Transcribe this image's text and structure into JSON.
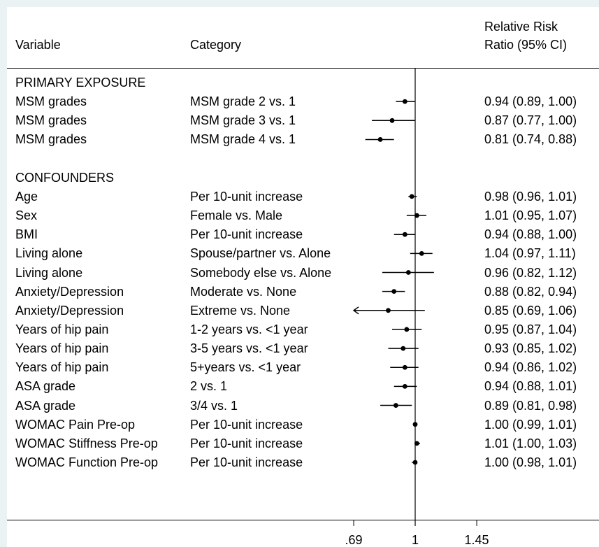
{
  "chart_data": {
    "type": "forest",
    "header": {
      "variable": "Variable",
      "category": "Category",
      "estimate_line1": "Relative Risk",
      "estimate_line2": "Ratio (95% CI)"
    },
    "x_scale": "log",
    "reference_line": 1,
    "xticks": [
      {
        "value": 0.69,
        "label": ".69"
      },
      {
        "value": 1,
        "label": "1"
      },
      {
        "value": 1.45,
        "label": "1.45"
      }
    ],
    "sections": [
      {
        "title": "PRIMARY EXPOSURE",
        "rows": [
          {
            "variable": "MSM grades",
            "category": "MSM grade 2 vs. 1",
            "estimate": 0.94,
            "lower": 0.89,
            "upper": 1.0,
            "label": "0.94 (0.89, 1.00)"
          },
          {
            "variable": "MSM grades",
            "category": "MSM grade 3 vs. 1",
            "estimate": 0.87,
            "lower": 0.77,
            "upper": 1.0,
            "label": "0.87 (0.77, 1.00)"
          },
          {
            "variable": "MSM grades",
            "category": "MSM grade 4 vs. 1",
            "estimate": 0.81,
            "lower": 0.74,
            "upper": 0.88,
            "label": "0.81 (0.74, 0.88)"
          }
        ]
      },
      {
        "title": "CONFOUNDERS",
        "rows": [
          {
            "variable": "Age",
            "category": "Per 10-unit increase",
            "estimate": 0.98,
            "lower": 0.96,
            "upper": 1.01,
            "label": "0.98 (0.96, 1.01)"
          },
          {
            "variable": "Sex",
            "category": "Female vs. Male",
            "estimate": 1.01,
            "lower": 0.95,
            "upper": 1.07,
            "label": "1.01 (0.95, 1.07)"
          },
          {
            "variable": "BMI",
            "category": "Per 10-unit increase",
            "estimate": 0.94,
            "lower": 0.88,
            "upper": 1.0,
            "label": "0.94 (0.88, 1.00)"
          },
          {
            "variable": "Living alone",
            "category": "Spouse/partner vs. Alone",
            "estimate": 1.04,
            "lower": 0.97,
            "upper": 1.11,
            "label": "1.04 (0.97, 1.11)"
          },
          {
            "variable": "Living alone",
            "category": "Somebody else vs. Alone",
            "estimate": 0.96,
            "lower": 0.82,
            "upper": 1.12,
            "label": "0.96 (0.82, 1.12)"
          },
          {
            "variable": "Anxiety/Depression",
            "category": "Moderate vs. None",
            "estimate": 0.88,
            "lower": 0.82,
            "upper": 0.94,
            "label": "0.88 (0.82, 0.94)"
          },
          {
            "variable": "Anxiety/Depression",
            "category": "Extreme vs. None",
            "estimate": 0.85,
            "lower": 0.69,
            "upper": 1.06,
            "label": "0.85 (0.69, 1.06)",
            "lower_arrow": true
          },
          {
            "variable": "Years of hip pain",
            "category": "1-2 years vs. <1 year",
            "estimate": 0.95,
            "lower": 0.87,
            "upper": 1.04,
            "label": "0.95 (0.87, 1.04)"
          },
          {
            "variable": "Years of hip pain",
            "category": "3-5 years vs. <1 year",
            "estimate": 0.93,
            "lower": 0.85,
            "upper": 1.02,
            "label": "0.93 (0.85, 1.02)"
          },
          {
            "variable": "Years of hip pain",
            "category": "5+years vs. <1 year",
            "estimate": 0.94,
            "lower": 0.86,
            "upper": 1.02,
            "label": "0.94 (0.86, 1.02)"
          },
          {
            "variable": "ASA grade",
            "category": "2 vs. 1",
            "estimate": 0.94,
            "lower": 0.88,
            "upper": 1.01,
            "label": "0.94 (0.88, 1.01)"
          },
          {
            "variable": "ASA grade",
            "category": "3/4 vs. 1",
            "estimate": 0.89,
            "lower": 0.81,
            "upper": 0.98,
            "label": "0.89 (0.81, 0.98)"
          },
          {
            "variable": "WOMAC Pain Pre-op",
            "category": "Per 10-unit increase",
            "estimate": 1.0,
            "lower": 0.99,
            "upper": 1.01,
            "label": "1.00 (0.99, 1.01)"
          },
          {
            "variable": "WOMAC Stiffness Pre-op",
            "category": "Per 10-unit increase",
            "estimate": 1.01,
            "lower": 1.0,
            "upper": 1.03,
            "label": "1.01 (1.00, 1.03)"
          },
          {
            "variable": "WOMAC Function Pre-op",
            "category": "Per 10-unit increase",
            "estimate": 1.0,
            "lower": 0.98,
            "upper": 1.01,
            "label": "1.00 (0.98, 1.01)"
          }
        ]
      }
    ],
    "colors": {
      "background": "#eaf2f3",
      "plot": "#ffffff",
      "marks": "#000000"
    }
  }
}
